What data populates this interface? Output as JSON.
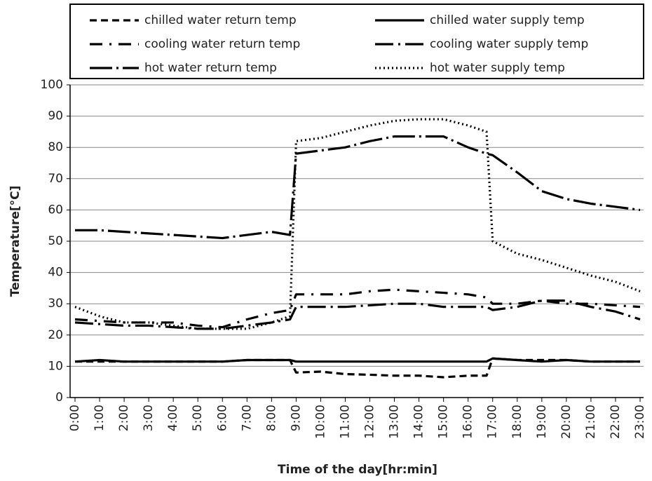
{
  "chart_data": {
    "type": "line",
    "y_label": "Temperature[°C]",
    "x_label": "Time of the day[hr:min]",
    "x": [
      0,
      1,
      2,
      3,
      4,
      5,
      6,
      7,
      8,
      8.75,
      9,
      10,
      11,
      12,
      13,
      14,
      15,
      16,
      16.75,
      17,
      18,
      19,
      20,
      21,
      22,
      23
    ],
    "xlim": [
      0,
      23
    ],
    "xticks": [
      {
        "value": 0,
        "label": "0:00"
      },
      {
        "value": 1,
        "label": "1:00"
      },
      {
        "value": 2,
        "label": "2:00"
      },
      {
        "value": 3,
        "label": "3:00"
      },
      {
        "value": 4,
        "label": "4:00"
      },
      {
        "value": 5,
        "label": "5:00"
      },
      {
        "value": 6,
        "label": "6:00"
      },
      {
        "value": 7,
        "label": "7:00"
      },
      {
        "value": 8,
        "label": "8:00"
      },
      {
        "value": 9,
        "label": "9:00"
      },
      {
        "value": 10,
        "label": "10:00"
      },
      {
        "value": 11,
        "label": "11:00"
      },
      {
        "value": 12,
        "label": "12:00"
      },
      {
        "value": 13,
        "label": "13:00"
      },
      {
        "value": 14,
        "label": "14:00"
      },
      {
        "value": 15,
        "label": "15:00"
      },
      {
        "value": 16,
        "label": "16:00"
      },
      {
        "value": 17,
        "label": "17:00"
      },
      {
        "value": 18,
        "label": "18:00"
      },
      {
        "value": 19,
        "label": "19:00"
      },
      {
        "value": 20,
        "label": "20:00"
      },
      {
        "value": 21,
        "label": "21:00"
      },
      {
        "value": 22,
        "label": "22:00"
      },
      {
        "value": 23,
        "label": "23:00"
      }
    ],
    "ylim": [
      0,
      100
    ],
    "yticks": [
      0,
      10,
      20,
      30,
      40,
      50,
      60,
      70,
      80,
      90,
      100
    ],
    "grid": true,
    "legend": "top",
    "series": [
      {
        "name": "chilled water return temp",
        "color": "#000000",
        "dash": "10,6",
        "values": [
          11.5,
          11.5,
          11.5,
          11.5,
          11.5,
          11.5,
          11.5,
          12,
          12,
          12,
          8,
          8.3,
          7.5,
          7.3,
          7,
          7,
          6.5,
          7,
          7,
          12.5,
          12,
          12,
          12,
          11.5,
          11.5,
          11.5
        ]
      },
      {
        "name": "chilled water supply temp",
        "color": "#000000",
        "dash": "none",
        "values": [
          11.5,
          12,
          11.5,
          11.5,
          11.5,
          11.5,
          11.5,
          12,
          12,
          12,
          11.5,
          11.5,
          11.5,
          11.5,
          11.5,
          11.5,
          11.5,
          11.5,
          11.5,
          12.5,
          12,
          11.5,
          12,
          11.5,
          11.5,
          11.5
        ]
      },
      {
        "name": "cooling water return temp",
        "color": "#000000",
        "dash": "18,10,3,10",
        "values": [
          25,
          24.5,
          24,
          24,
          24,
          23,
          22.5,
          25,
          27,
          28,
          33,
          33,
          33,
          34,
          34.5,
          34,
          33.5,
          33,
          32,
          30,
          30,
          31,
          30,
          30,
          29.5,
          29
        ]
      },
      {
        "name": "cooling water supply temp",
        "color": "#000000",
        "dash": "26,7,3,7",
        "values": [
          24,
          23.5,
          23,
          23,
          22.5,
          22,
          22,
          23,
          24,
          25,
          29,
          29,
          29,
          29.5,
          30,
          30,
          29,
          29,
          29,
          28,
          29,
          31,
          31,
          29,
          27.5,
          25
        ]
      },
      {
        "name": "hot water return temp",
        "color": "#000000",
        "dash": "32,6,3,6",
        "values": [
          53.5,
          53.5,
          53,
          52.5,
          52,
          51.5,
          51,
          52,
          53,
          52,
          78,
          79,
          80,
          82,
          83.5,
          83.5,
          83.5,
          80,
          78,
          77.5,
          72,
          66,
          63.5,
          62,
          61,
          60
        ]
      },
      {
        "name": "hot water supply temp",
        "color": "#000000",
        "dash": "2,4",
        "values": [
          29,
          26,
          24,
          24,
          23,
          22,
          22,
          22,
          24,
          26,
          82,
          83,
          85,
          87,
          88.5,
          89,
          89,
          87,
          85,
          50,
          46,
          44,
          41.5,
          39,
          37,
          34
        ]
      }
    ]
  }
}
